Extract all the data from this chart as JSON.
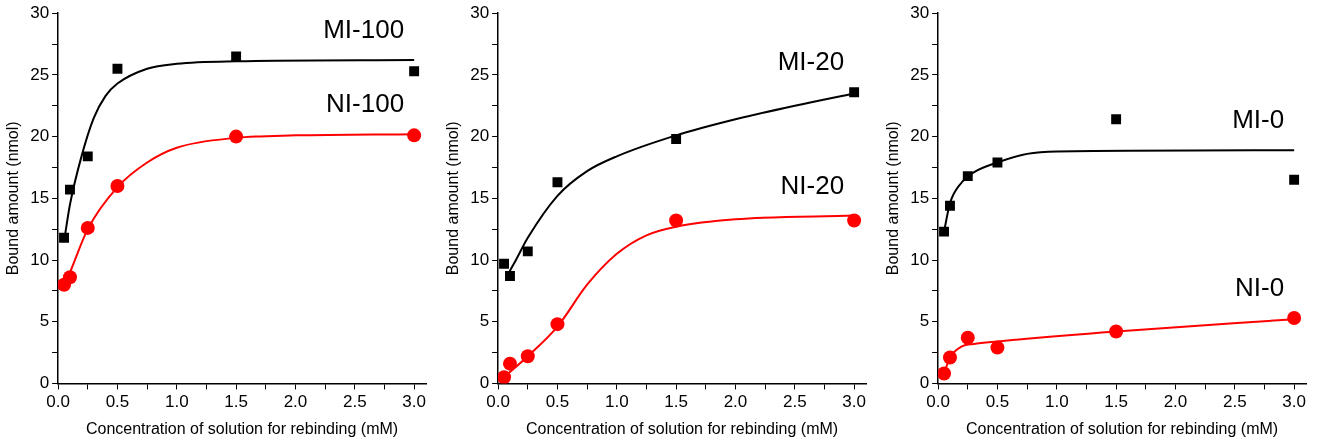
{
  "chart_data": [
    {
      "type": "scatter",
      "xlabel": "Concentration of solution for rebinding (mM)",
      "ylabel": "Bound amount (nmol)",
      "xlim": [
        0,
        3.1
      ],
      "xticks": [
        {
          "value": 0,
          "label": "0.0"
        },
        {
          "value": 0.25,
          "label": null
        },
        {
          "value": 0.5,
          "label": "0.5"
        },
        {
          "value": 0.75,
          "label": null
        },
        {
          "value": 1,
          "label": "1.0"
        },
        {
          "value": 1.25,
          "label": null
        },
        {
          "value": 1.5,
          "label": "1.5"
        },
        {
          "value": 1.75,
          "label": null
        },
        {
          "value": 2,
          "label": "2.0"
        },
        {
          "value": 2.25,
          "label": null
        },
        {
          "value": 2.5,
          "label": "2.5"
        },
        {
          "value": 2.75,
          "label": null
        },
        {
          "value": 3,
          "label": "3.0"
        }
      ],
      "ylim": [
        0,
        30
      ],
      "yticks": [
        0,
        {
          "value": 2.5,
          "label": null
        },
        5,
        {
          "value": 7.5,
          "label": null
        },
        10,
        {
          "value": 12.5,
          "label": null
        },
        15,
        {
          "value": 17.5,
          "label": null
        },
        20,
        {
          "value": 22.5,
          "label": null
        },
        25,
        {
          "value": 27.5,
          "label": null
        },
        30
      ],
      "legend": false,
      "grid": false,
      "series": [
        {
          "type": "line",
          "color": "#000000",
          "marker": "none",
          "x": [
            0.05,
            0.1,
            0.2,
            0.3,
            0.4,
            0.5,
            0.75,
            1.0,
            1.5,
            3.0
          ],
          "values": [
            11.5,
            14.5,
            18.5,
            21.5,
            23.3,
            24.3,
            25.5,
            25.9,
            26.1,
            26.2
          ]
        },
        {
          "type": "line",
          "color": "#ff0000",
          "marker": "none",
          "x": [
            0.05,
            0.1,
            0.25,
            0.5,
            0.75,
            1.0,
            1.5,
            2.0,
            3.0
          ],
          "values": [
            7.9,
            9,
            12.5,
            15.9,
            17.9,
            19.1,
            19.9,
            20.1,
            20.2
          ]
        },
        {
          "name": "MI-100",
          "type": "scatter",
          "color": "#000000",
          "marker": "square",
          "x": [
            0.05,
            0.1,
            0.25,
            0.5,
            1.5,
            3.0
          ],
          "values": [
            11.8,
            15.7,
            18.4,
            25.5,
            26.5,
            25.3
          ]
        },
        {
          "name": "NI-100",
          "type": "scatter",
          "color": "#ff0000",
          "marker": "circle",
          "x": [
            0.05,
            0.1,
            0.25,
            0.5,
            1.5,
            3.0
          ],
          "values": [
            8.0,
            8.6,
            12.6,
            16.0,
            20.0,
            20.1
          ]
        }
      ]
    },
    {
      "type": "scatter",
      "xlabel": "Concentration of solution for rebinding (mM)",
      "ylabel": "Bound amount (nmol)",
      "xlim": [
        0,
        3.1
      ],
      "xticks": [
        {
          "value": 0,
          "label": "0.0"
        },
        {
          "value": 0.25,
          "label": null
        },
        {
          "value": 0.5,
          "label": "0.5"
        },
        {
          "value": 0.75,
          "label": null
        },
        {
          "value": 1,
          "label": "1.0"
        },
        {
          "value": 1.25,
          "label": null
        },
        {
          "value": 1.5,
          "label": "1.5"
        },
        {
          "value": 1.75,
          "label": null
        },
        {
          "value": 2,
          "label": "2.0"
        },
        {
          "value": 2.25,
          "label": null
        },
        {
          "value": 2.5,
          "label": "2.5"
        },
        {
          "value": 2.75,
          "label": null
        },
        {
          "value": 3,
          "label": "3.0"
        }
      ],
      "ylim": [
        0,
        30
      ],
      "yticks": [
        0,
        {
          "value": 2.5,
          "label": null
        },
        5,
        {
          "value": 7.5,
          "label": null
        },
        10,
        {
          "value": 12.5,
          "label": null
        },
        15,
        {
          "value": 17.5,
          "label": null
        },
        20,
        {
          "value": 22.5,
          "label": null
        },
        25,
        {
          "value": 27.5,
          "label": null
        },
        30
      ],
      "legend": false,
      "grid": false,
      "series": [
        {
          "type": "line",
          "color": "#000000",
          "marker": "none",
          "x": [
            0.08,
            0.15,
            0.25,
            0.5,
            0.75,
            1.0,
            1.5,
            2.0,
            2.5,
            3.0
          ],
          "values": [
            8.8,
            10,
            11.8,
            15.2,
            17.2,
            18.4,
            20.1,
            21.4,
            22.5,
            23.5
          ]
        },
        {
          "type": "line",
          "color": "#ff0000",
          "marker": "none",
          "x": [
            0.05,
            0.25,
            0.5,
            0.75,
            1.0,
            1.25,
            1.5,
            2.0,
            3.0
          ],
          "values": [
            0.5,
            2.2,
            4.6,
            8.0,
            10.5,
            12.0,
            12.7,
            13.3,
            13.6
          ]
        },
        {
          "name": "MI-20",
          "type": "scatter",
          "color": "#000000",
          "marker": "square",
          "x": [
            0.05,
            0.1,
            0.25,
            0.5,
            1.5,
            3.0
          ],
          "values": [
            9.7,
            8.7,
            10.7,
            16.3,
            19.8,
            23.6
          ]
        },
        {
          "name": "NI-20",
          "type": "scatter",
          "color": "#ff0000",
          "marker": "circle",
          "x": [
            0.05,
            0.1,
            0.25,
            0.5,
            1.5,
            3.0
          ],
          "values": [
            0.5,
            1.6,
            2.2,
            4.8,
            13.2,
            13.2
          ]
        }
      ]
    },
    {
      "type": "scatter",
      "xlabel": "Concentration of solution for rebinding (mM)",
      "ylabel": "Bound amount (nmol)",
      "xlim": [
        0,
        3.1
      ],
      "xticks": [
        {
          "value": 0,
          "label": "0.0"
        },
        {
          "value": 0.25,
          "label": null
        },
        {
          "value": 0.5,
          "label": "0.5"
        },
        {
          "value": 0.75,
          "label": null
        },
        {
          "value": 1,
          "label": "1.0"
        },
        {
          "value": 1.25,
          "label": null
        },
        {
          "value": 1.5,
          "label": "1.5"
        },
        {
          "value": 1.75,
          "label": null
        },
        {
          "value": 2,
          "label": "2.0"
        },
        {
          "value": 2.25,
          "label": null
        },
        {
          "value": 2.5,
          "label": "2.5"
        },
        {
          "value": 2.75,
          "label": null
        },
        {
          "value": 3,
          "label": "3.0"
        }
      ],
      "ylim": [
        0,
        30
      ],
      "yticks": [
        0,
        {
          "value": 2.5,
          "label": null
        },
        5,
        {
          "value": 7.5,
          "label": null
        },
        10,
        {
          "value": 12.5,
          "label": null
        },
        15,
        {
          "value": 17.5,
          "label": null
        },
        20,
        {
          "value": 22.5,
          "label": null
        },
        25,
        {
          "value": 27.5,
          "label": null
        },
        30
      ],
      "legend": false,
      "grid": false,
      "series": [
        {
          "type": "line",
          "color": "#000000",
          "marker": "none",
          "x": [
            0.05,
            0.1,
            0.2,
            0.3,
            0.5,
            0.75,
            1.0,
            3.0
          ],
          "values": [
            12.3,
            14.6,
            16.3,
            17.1,
            17.9,
            18.6,
            18.8,
            18.9
          ]
        },
        {
          "type": "line",
          "color": "#ff0000",
          "marker": "none",
          "x": [
            0.05,
            0.1,
            0.2,
            0.3,
            0.5,
            1.5,
            3.0
          ],
          "values": [
            0.8,
            2.1,
            3.0,
            3.2,
            3.4,
            4.2,
            5.2
          ]
        },
        {
          "name": "MI-0",
          "type": "scatter",
          "color": "#000000",
          "marker": "square",
          "x": [
            0.05,
            0.1,
            0.25,
            0.5,
            1.5,
            3.0
          ],
          "values": [
            12.3,
            14.4,
            16.8,
            17.9,
            21.4,
            16.5
          ]
        },
        {
          "name": "NI-0",
          "type": "scatter",
          "color": "#ff0000",
          "marker": "circle",
          "x": [
            0.05,
            0.1,
            0.25,
            0.5,
            1.5,
            3.0
          ],
          "values": [
            0.8,
            2.1,
            3.7,
            2.9,
            4.2,
            5.3
          ]
        }
      ]
    }
  ]
}
